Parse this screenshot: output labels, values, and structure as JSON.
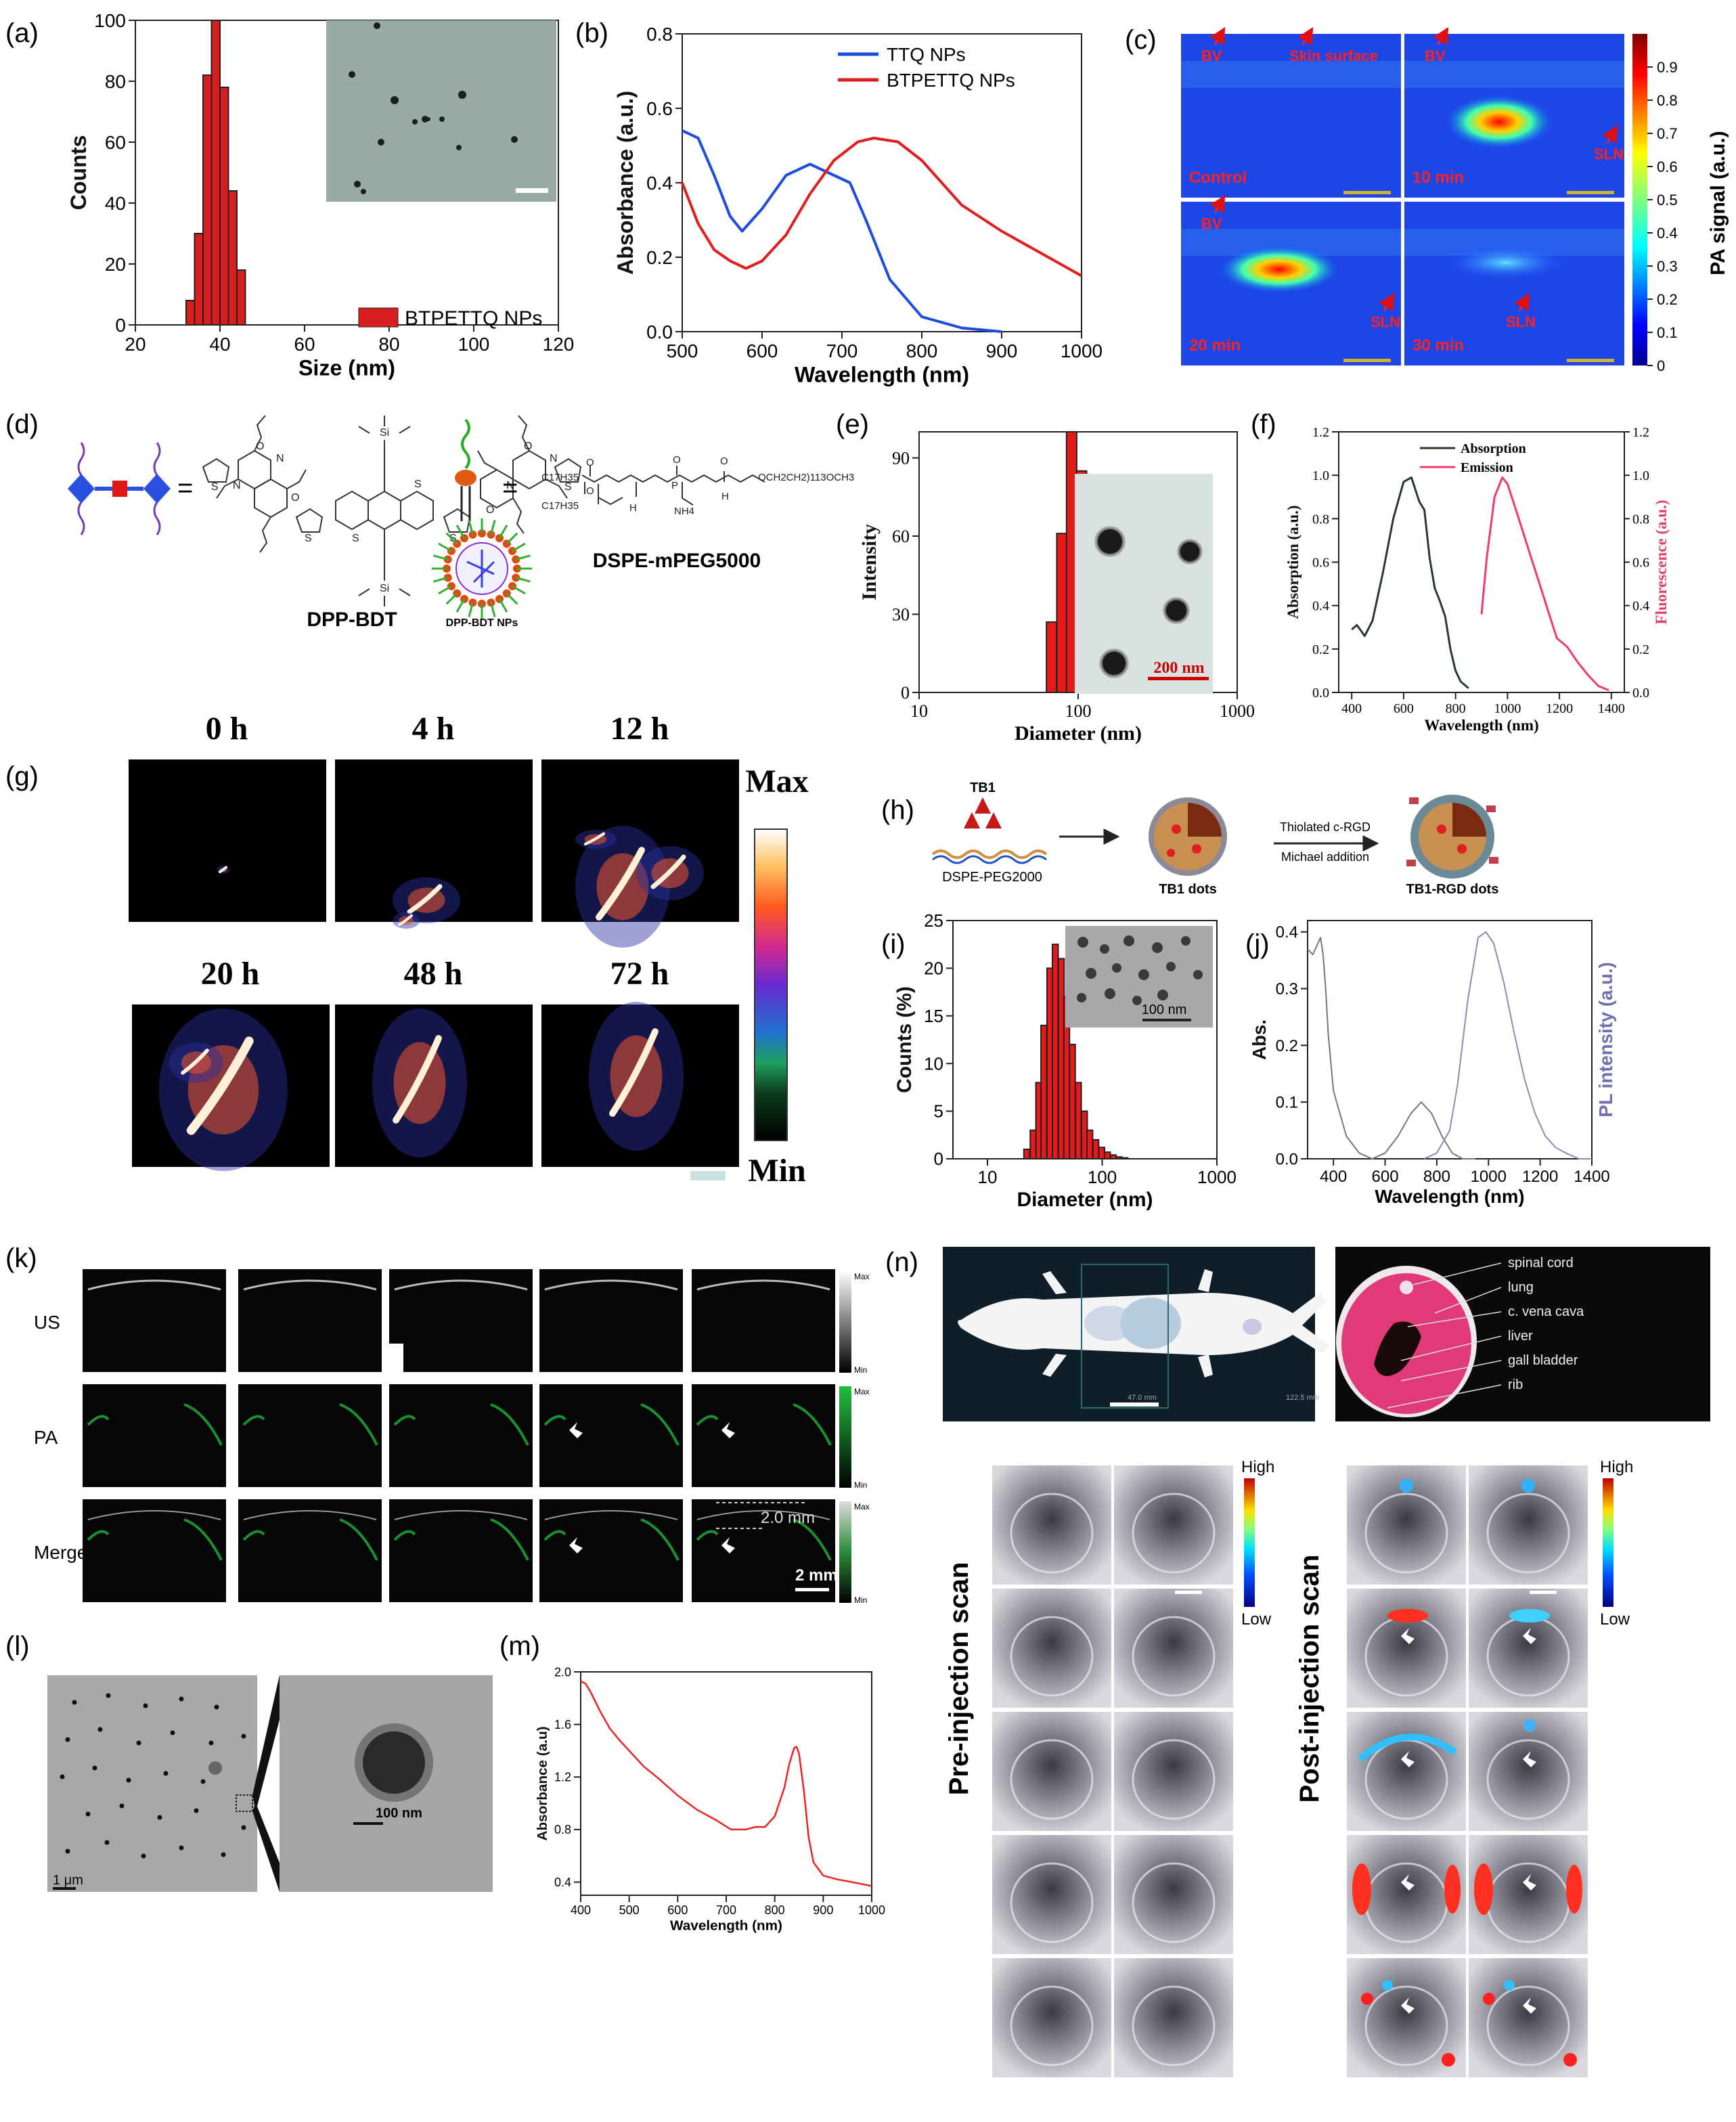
{
  "panels": {
    "a": {
      "label": "(a)",
      "chart_data": {
        "type": "bar",
        "xlabel": "Size (nm)",
        "ylabel": "Counts",
        "xlim": [
          20,
          120
        ],
        "ylim": [
          0,
          100
        ],
        "xticks": [
          "20",
          "40",
          "60",
          "80",
          "100",
          "120"
        ],
        "yticks": [
          "0",
          "20",
          "40",
          "60",
          "80",
          "100"
        ],
        "bins": [
          33,
          35,
          37,
          39,
          41,
          43,
          45
        ],
        "values": [
          8,
          30,
          82,
          100,
          78,
          44,
          18
        ],
        "legend": "BTPETTQ NPs",
        "legend_position": "bottom-right",
        "color": "#d61e1e"
      }
    },
    "b": {
      "label": "(b)",
      "chart_data": {
        "type": "line",
        "xlabel": "Wavelength (nm)",
        "ylabel": "Absorbance (a.u.)",
        "xlim": [
          500,
          1000
        ],
        "ylim": [
          0,
          0.8
        ],
        "xticks": [
          "500",
          "600",
          "700",
          "800",
          "900",
          "1000"
        ],
        "yticks": [
          "0.0",
          "0.2",
          "0.4",
          "0.6",
          "0.8"
        ],
        "legend_position": "top-right",
        "series": [
          {
            "name": "TTQ NPs",
            "color": "#1e4be0",
            "x": [
              500,
              520,
              540,
              560,
              575,
              600,
              630,
              660,
              690,
              710,
              730,
              760,
              800,
              850,
              900
            ],
            "y": [
              0.54,
              0.52,
              0.42,
              0.31,
              0.27,
              0.33,
              0.42,
              0.45,
              0.42,
              0.4,
              0.3,
              0.14,
              0.04,
              0.01,
              0.0
            ]
          },
          {
            "name": "BTPETTQ NPs",
            "color": "#e01e1e",
            "x": [
              500,
              520,
              540,
              560,
              580,
              600,
              630,
              660,
              690,
              720,
              740,
              770,
              800,
              850,
              900,
              950,
              1000
            ],
            "y": [
              0.4,
              0.29,
              0.22,
              0.19,
              0.17,
              0.19,
              0.26,
              0.37,
              0.46,
              0.51,
              0.52,
              0.51,
              0.46,
              0.34,
              0.27,
              0.21,
              0.15
            ]
          }
        ]
      }
    },
    "c": {
      "label": "(c)",
      "tiles": [
        {
          "caption": "Control",
          "notes": [
            "BV",
            "Skin surface"
          ]
        },
        {
          "caption": "10 min",
          "notes": [
            "BV",
            "SLN"
          ]
        },
        {
          "caption": "20 min",
          "notes": [
            "BV",
            "SLN"
          ]
        },
        {
          "caption": "30 min",
          "notes": [
            "SLN"
          ]
        }
      ],
      "colorbar_label": "PA signal (a.u.)",
      "colorbar_ticks": [
        "0",
        "0.1",
        "0.2",
        "0.3",
        "0.4",
        "0.5",
        "0.6",
        "0.7",
        "0.8",
        "0.9"
      ]
    },
    "d": {
      "label": "(d)",
      "eq": "=",
      "dpp_name": "DPP-BDT",
      "np_name": "DPP-BDT NPs",
      "peg_name": "DSPE-mPEG5000",
      "chem": {
        "c17a": "C17H35",
        "c17b": "C17H35",
        "o": "O",
        "nh4": "NH4",
        "chain": "OCH2CH2)113OCH3",
        "si": "Si",
        "s": "S",
        "n": "N",
        "h": "H",
        "p": "P"
      }
    },
    "e": {
      "label": "(e)",
      "chart_data": {
        "type": "bar",
        "xlabel": "Diameter (nm)",
        "ylabel": "Intensity",
        "xscale": "log",
        "xlim": [
          10,
          1000
        ],
        "ylim": [
          0,
          100
        ],
        "xticks": [
          "10",
          "100",
          "1000"
        ],
        "yticks": [
          "0",
          "30",
          "60",
          "90"
        ],
        "bins": [
          68,
          79,
          91,
          105,
          122
        ],
        "values": [
          27,
          61,
          100,
          85,
          53
        ],
        "color": "#e61a1a"
      },
      "scale": "200 nm"
    },
    "f": {
      "label": "(f)",
      "chart_data": {
        "type": "line",
        "xlabel": "Wavelength (nm)",
        "ylabel": "Absorption (a.u.)",
        "y2label": "Fluorescence (a.u.)",
        "xlim": [
          350,
          1450
        ],
        "ylim": [
          0,
          1.2
        ],
        "xticks": [
          "400",
          "600",
          "800",
          "1000",
          "1200",
          "1400"
        ],
        "yticks": [
          "0.0",
          "0.2",
          "0.4",
          "0.6",
          "0.8",
          "1.0",
          "1.2"
        ],
        "legend_position": "top-left",
        "series": [
          {
            "name": "Absorption",
            "color": "#2a3a2a",
            "x": [
              400,
              420,
              450,
              480,
              520,
              560,
              600,
              630,
              660,
              680,
              700,
              720,
              740,
              760,
              780,
              800,
              820,
              850
            ],
            "y": [
              0.29,
              0.31,
              0.26,
              0.33,
              0.55,
              0.8,
              0.97,
              0.99,
              0.88,
              0.84,
              0.62,
              0.48,
              0.42,
              0.35,
              0.2,
              0.1,
              0.05,
              0.02
            ]
          },
          {
            "name": "Emission",
            "color": "#f03a6a",
            "x": [
              900,
              920,
              950,
              980,
              1000,
              1030,
              1070,
              1110,
              1150,
              1190,
              1230,
              1270,
              1310,
              1350,
              1390
            ],
            "y": [
              0.36,
              0.62,
              0.9,
              0.99,
              0.96,
              0.85,
              0.7,
              0.55,
              0.4,
              0.25,
              0.21,
              0.14,
              0.08,
              0.03,
              0.01
            ]
          }
        ]
      }
    },
    "g": {
      "label": "(g)",
      "times": [
        "0 h",
        "4 h",
        "12 h",
        "20 h",
        "48 h",
        "72 h"
      ],
      "max": "Max",
      "min": "Min"
    },
    "h": {
      "label": "(h)",
      "tb1": "TB1",
      "peg": "DSPE-PEG2000",
      "dots": "TB1 dots",
      "arrow_top": "Thiolated c-RGD",
      "arrow_bottom": "Michael addition",
      "rgd_dots": "TB1-RGD dots"
    },
    "i": {
      "label": "(i)",
      "chart_data": {
        "type": "bar",
        "xlabel": "Diameter (nm)",
        "ylabel": "Counts (%)",
        "xscale": "log",
        "xlim": [
          5,
          1000
        ],
        "ylim": [
          0,
          25
        ],
        "xticks": [
          "10",
          "100",
          "1000"
        ],
        "yticks": [
          "0",
          "5",
          "10",
          "15",
          "20",
          "25"
        ],
        "bins": [
          22,
          25,
          28,
          31,
          35,
          39,
          44,
          49,
          55,
          62,
          70,
          78,
          88,
          99,
          111,
          125,
          140,
          158
        ],
        "values": [
          1,
          3,
          8,
          14,
          20,
          22.5,
          21,
          17,
          12,
          8,
          5,
          3,
          2,
          1.2,
          0.7,
          0.4,
          0.2,
          0.1
        ],
        "color": "#e61a1a"
      },
      "scale": "100 nm"
    },
    "j": {
      "label": "(j)",
      "chart_data": {
        "type": "line",
        "xlabel": "Wavelength (nm)",
        "ylabel": "Abs.",
        "y2label": "PL intensity (a.u.)",
        "xlim": [
          300,
          1400
        ],
        "ylim": [
          0,
          0.42
        ],
        "xticks": [
          "400",
          "600",
          "800",
          "1000",
          "1200",
          "1400"
        ],
        "yticks": [
          "0.0",
          "0.1",
          "0.2",
          "0.3",
          "0.4"
        ],
        "series": [
          {
            "name": "Abs",
            "color": "#777777",
            "x": [
              300,
              320,
              340,
              350,
              360,
              370,
              380,
              400,
              450,
              500,
              550,
              600,
              650,
              700,
              740,
              780,
              820,
              860,
              900,
              950
            ],
            "y": [
              0.37,
              0.36,
              0.38,
              0.39,
              0.36,
              0.3,
              0.22,
              0.12,
              0.04,
              0.01,
              0.0,
              0.01,
              0.04,
              0.08,
              0.1,
              0.08,
              0.04,
              0.01,
              0.0,
              0.0
            ]
          },
          {
            "name": "PL",
            "color": "#8a8ab8",
            "x": [
              750,
              800,
              850,
              880,
              920,
              960,
              990,
              1020,
              1060,
              1100,
              1140,
              1180,
              1220,
              1260,
              1300,
              1350,
              1400
            ],
            "y": [
              0.0,
              0.01,
              0.05,
              0.13,
              0.28,
              0.39,
              0.4,
              0.38,
              0.31,
              0.22,
              0.14,
              0.08,
              0.04,
              0.02,
              0.01,
              0.0,
              0.0
            ]
          }
        ]
      }
    },
    "k": {
      "label": "(k)",
      "rows": [
        "US",
        "PA",
        "Merge"
      ],
      "max": "Max",
      "min": "Min",
      "depth": "2.0 mm",
      "scale": "2 mm"
    },
    "l": {
      "label": "(l)",
      "scale1": "1 μm",
      "scale2": "100 nm"
    },
    "m": {
      "label": "(m)",
      "chart_data": {
        "type": "line",
        "xlabel": "Wavelength (nm)",
        "ylabel": "Absorbance (a.u)",
        "xlim": [
          400,
          1000
        ],
        "ylim": [
          0.3,
          2.0
        ],
        "xticks": [
          "400",
          "500",
          "600",
          "700",
          "800",
          "900",
          "1000"
        ],
        "yticks": [
          "0.4",
          "0.8",
          "1.2",
          "1.6",
          "2.0"
        ],
        "series": [
          {
            "name": "",
            "color": "#ee2222",
            "x": [
              400,
              410,
              420,
              440,
              460,
              480,
              500,
              530,
              560,
              600,
              640,
              680,
              710,
              740,
              760,
              780,
              800,
              820,
              830,
              840,
              845,
              850,
              860,
              870,
              880,
              900,
              930,
              960,
              1000
            ],
            "y": [
              1.93,
              1.91,
              1.85,
              1.7,
              1.57,
              1.48,
              1.4,
              1.28,
              1.19,
              1.06,
              0.95,
              0.87,
              0.8,
              0.8,
              0.82,
              0.82,
              0.9,
              1.12,
              1.3,
              1.42,
              1.43,
              1.38,
              1.1,
              0.74,
              0.55,
              0.45,
              0.42,
              0.4,
              0.37
            ]
          }
        ]
      }
    },
    "n": {
      "label": "(n)",
      "anatomy": [
        "spinal cord",
        "lung",
        "c. vena cava",
        "liver",
        "gall bladder",
        "rib"
      ],
      "ruler_a": "47.0 mm",
      "ruler_b": "122.5 mm",
      "pre": "Pre-injection scan",
      "post": "Post-injection scan",
      "high": "High",
      "low": "Low"
    }
  }
}
